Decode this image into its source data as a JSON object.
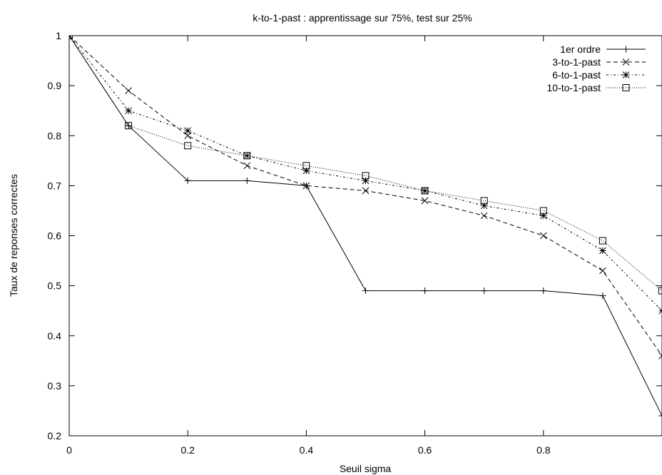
{
  "chart_data": {
    "type": "line",
    "title": "k-to-1-past : apprentissage sur 75%, test sur 25%",
    "xlabel": "Seuil sigma",
    "ylabel": "Taux de reponses correctes",
    "xlim": [
      0,
      1
    ],
    "ylim": [
      0.2,
      1
    ],
    "xticks": [
      0,
      0.2,
      0.4,
      0.6,
      0.8
    ],
    "xtick_labels": [
      "0",
      "0.2",
      "0.4",
      "0.6",
      "0.8"
    ],
    "yticks": [
      0.2,
      0.3,
      0.4,
      0.5,
      0.6,
      0.7,
      0.8,
      0.9,
      1
    ],
    "ytick_labels": [
      "0.2",
      "0.3",
      "0.4",
      "0.5",
      "0.6",
      "0.7",
      "0.8",
      "0.9",
      "1"
    ],
    "grid": false,
    "legend_position": "top-right",
    "x": [
      0,
      0.1,
      0.2,
      0.3,
      0.4,
      0.5,
      0.6,
      0.7,
      0.8,
      0.9,
      1.0
    ],
    "series": [
      {
        "name": "1er ordre",
        "marker": "plus",
        "dash": "solid",
        "values": [
          1.0,
          0.82,
          0.71,
          0.71,
          0.7,
          0.49,
          0.49,
          0.49,
          0.49,
          0.48,
          0.24
        ]
      },
      {
        "name": "3-to-1-past",
        "marker": "cross",
        "dash": "dashed",
        "values": [
          1.0,
          0.89,
          0.8,
          0.74,
          0.7,
          0.69,
          0.67,
          0.64,
          0.6,
          0.53,
          0.36
        ]
      },
      {
        "name": "6-to-1-past",
        "marker": "star",
        "dash": "dash-dot",
        "values": [
          1.0,
          0.85,
          0.81,
          0.76,
          0.73,
          0.71,
          0.69,
          0.66,
          0.64,
          0.57,
          0.45
        ]
      },
      {
        "name": "10-to-1-past",
        "marker": "square",
        "dash": "dotted",
        "values": [
          1.0,
          0.82,
          0.78,
          0.76,
          0.74,
          0.72,
          0.69,
          0.67,
          0.65,
          0.59,
          0.49
        ]
      }
    ]
  }
}
